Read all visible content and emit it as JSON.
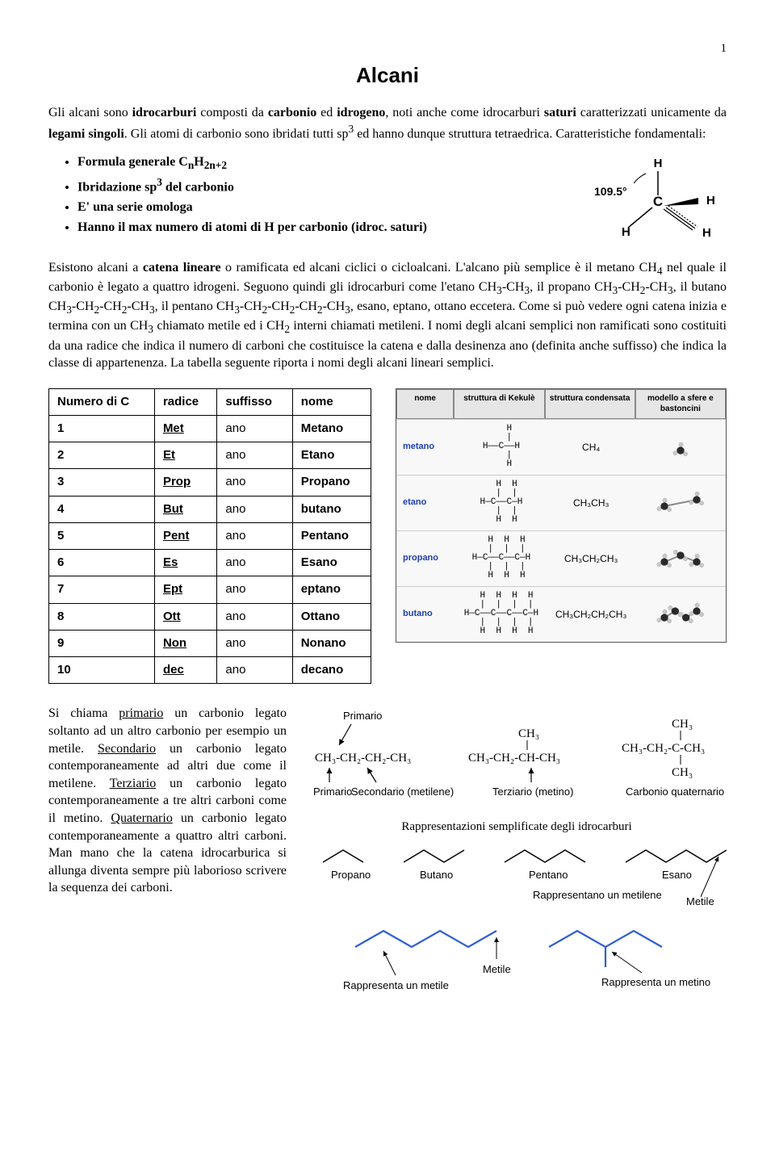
{
  "page_number": "1",
  "title": "Alcani",
  "intro_html": "Gli alcani sono <b>idrocarburi</b> composti da <b>carbonio</b> ed <b>idrogeno</b>, noti anche come idrocarburi <b>saturi</b> caratterizzati unicamente da <b>legami singoli</b>. Gli atomi di carbonio sono ibridati tutti sp<sup>3</sup> ed hanno dunque struttura tetraedrica. Caratteristiche fondamentali:",
  "bullets": [
    "Formula generale C<sub>n</sub>H<sub>2n+2</sub>",
    "Ibridazione sp<sup>3</sup> del carbonio",
    "E' una serie omologa",
    "Hanno il max numero di atomi di H per carbonio (idroc. saturi)"
  ],
  "methane_angle": "109.5°",
  "para2_html": "Esistono alcani a <b>catena lineare</b> o ramificata ed alcani ciclici o cicloalcani. L'alcano più semplice è il metano CH<sub>4</sub> nel quale il carbonio è legato a quattro idrogeni. Seguono quindi gli idrocarburi come l'etano CH<sub>3</sub>-CH<sub>3</sub>, il propano CH<sub>3</sub>-CH<sub>2</sub>-CH<sub>3</sub>, il butano CH<sub>3</sub>-CH<sub>2</sub>-CH<sub>2</sub>-CH<sub>3</sub>, il pentano CH<sub>3</sub>-CH<sub>2</sub>-CH<sub>2</sub>-CH<sub>2</sub>-CH<sub>3</sub>, esano, eptano, ottano eccetera. Come si può vedere ogni catena inizia e termina con un CH<sub>3</sub> chiamato metile ed i CH<sub>2</sub> interni chiamati metileni. I nomi degli alcani semplici non ramificati sono costituiti da una radice che indica il numero di carboni che costituisce la catena e dalla desinenza ano (definita anche suffisso) che indica la classe di appartenenza. La tabella seguente riporta i nomi degli alcani lineari semplici.",
  "alkanes_table": {
    "headers": [
      "Numero di C",
      "radice",
      "suffisso",
      "nome"
    ],
    "rows": [
      [
        "1",
        "Met",
        "ano",
        "Metano"
      ],
      [
        "2",
        "Et",
        "ano",
        "Etano"
      ],
      [
        "3",
        "Prop",
        "ano",
        "Propano"
      ],
      [
        "4",
        "But",
        "ano",
        "butano"
      ],
      [
        "5",
        "Pent",
        "ano",
        "Pentano"
      ],
      [
        "6",
        "Es",
        "ano",
        "Esano"
      ],
      [
        "7",
        "Ept",
        "ano",
        "eptano"
      ],
      [
        "8",
        "Ott",
        "ano",
        "Ottano"
      ],
      [
        "9",
        "Non",
        "ano",
        "Nonano"
      ],
      [
        "10",
        "dec",
        "ano",
        "decano"
      ]
    ]
  },
  "struct_panel": {
    "headers": [
      "nome",
      "struttura di Kekulè",
      "struttura condensata",
      "modello a sfere e bastoncini"
    ],
    "rows": [
      {
        "name": "metano",
        "kekule": "   H\n   |\nH——C——H\n   |\n   H",
        "condensed": "CH₄"
      },
      {
        "name": "etano",
        "kekule": "  H  H\n  |  |\nH—C——C—H\n  |  |\n  H  H",
        "condensed": "CH₃CH₃"
      },
      {
        "name": "propano",
        "kekule": "  H  H  H\n  |  |  |\nH—C——C——C—H\n  |  |  |\n  H  H  H",
        "condensed": "CH₃CH₂CH₃"
      },
      {
        "name": "butano",
        "kekule": "  H  H  H  H\n  |  |  |  |\nH—C——C——C——C—H\n  |  |  |  |\n  H  H  H  H",
        "condensed": "CH₃CH₂CH₂CH₃"
      }
    ]
  },
  "bottom_text_html": "Si chiama <u>primario</u> un carbonio legato soltanto ad un altro carbonio per esempio un metile. <u>Secondario</u> un carbonio legato contemporaneamente ad altri due come il metilene. <u>Terziario</u> un carbonio legato contemporaneamente a tre altri carboni come il metino. <u>Quaternario</u> un carbonio legato contemporaneamente a quattro altri carboni. Man mano che la catena idrocarburica si allunga diventa sempre più laborioso scrivere la sequenza dei carboni.",
  "diagram_upper": {
    "labels": {
      "primario_top": "Primario",
      "primario_bottom": "Primario",
      "secondario": "Secondario (metilene)",
      "terziario": "Terziario (metino)",
      "quaternario": "Carbonio quaternario",
      "chain1": "CH₃-CH₂-CH₂-CH₃",
      "chain2_top": "CH₃",
      "chain2_main": "CH₃-CH₂-CH-CH₃",
      "chain3_top": "CH₃",
      "chain3_main": "CH₃-CH₂-C-CH₃",
      "chain3_bottom": "CH₃"
    }
  },
  "diagram_lower": {
    "title": "Rappresentazioni semplificate degli idrocarburi",
    "names": [
      "Propano",
      "Butano",
      "Pentano",
      "Esano"
    ],
    "annotations": {
      "metilene_top": "Rappresentano un metilene",
      "metile_right": "Metile",
      "metile_bottom": "Metile",
      "metile_left": "Rappresenta un metile",
      "metino": "Rappresenta un metino"
    }
  },
  "colors": {
    "carbon": "#2a2a2a",
    "hydrogen": "#c8c8c8",
    "line_blue": "#2e5fd0",
    "text": "#000000"
  }
}
